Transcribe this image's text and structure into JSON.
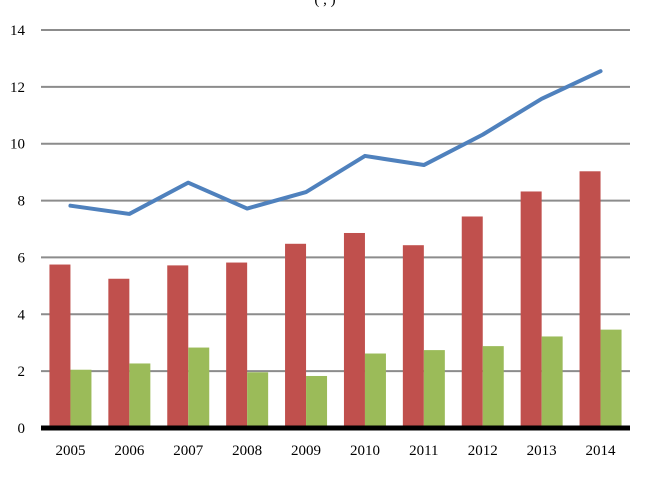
{
  "chart_data": {
    "type": "bar",
    "title_fragment": "(         ,         )",
    "categories": [
      "2005",
      "2006",
      "2007",
      "2008",
      "2009",
      "2010",
      "2011",
      "2012",
      "2013",
      "2014"
    ],
    "series": [
      {
        "kind": "bar",
        "values": [
          5.75,
          5.25,
          5.72,
          5.82,
          6.48,
          6.86,
          6.43,
          7.44,
          8.32,
          9.03
        ],
        "color": "#c0504d"
      },
      {
        "kind": "bar",
        "values": [
          2.05,
          2.27,
          2.83,
          1.96,
          1.83,
          2.62,
          2.74,
          2.88,
          3.22,
          3.46
        ],
        "color": "#9bbb59"
      },
      {
        "kind": "line",
        "values": [
          7.82,
          7.53,
          8.63,
          7.72,
          8.3,
          9.57,
          9.25,
          10.32,
          11.58,
          12.55
        ],
        "color": "#4f81bd"
      }
    ],
    "ylim": [
      0,
      14
    ],
    "yticks": [
      0,
      2,
      4,
      6,
      8,
      10,
      12,
      14
    ],
    "grid": true,
    "xlabel": "",
    "ylabel": ""
  }
}
